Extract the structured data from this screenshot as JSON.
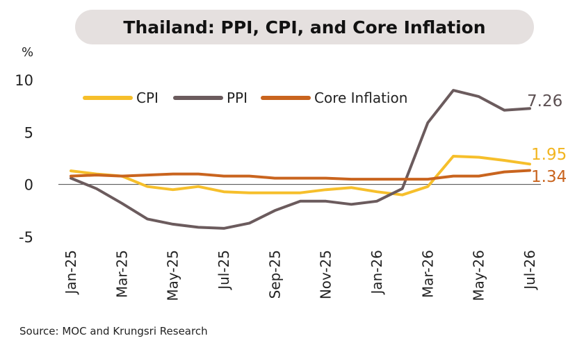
{
  "chart_data": {
    "type": "line",
    "title": "Thailand: PPI, CPI, and Core Inflation",
    "ylabel": "%",
    "ylim": [
      -5,
      10
    ],
    "yticks": [
      10,
      5,
      0,
      -5
    ],
    "x": [
      "Jan-25",
      "Feb-25",
      "Mar-25",
      "Apr-25",
      "May-25",
      "Jun-25",
      "Jul-25",
      "Aug-25",
      "Sep-25",
      "Oct-25",
      "Nov-25",
      "Dec-25",
      "Jan-26",
      "Feb-26",
      "Mar-26",
      "Apr-26",
      "May-26",
      "Jun-26",
      "Jul-26"
    ],
    "xtick_labels": [
      "Jan-25",
      "Mar-25",
      "May-25",
      "Jul-25",
      "Sep-25",
      "Nov-25",
      "Jan-26",
      "Mar-26",
      "May-26",
      "Jul-26"
    ],
    "legend_position": "top",
    "series": [
      {
        "name": "CPI",
        "color": "#f6bf2b",
        "values": [
          1.3,
          1.0,
          0.8,
          -0.2,
          -0.5,
          -0.2,
          -0.7,
          -0.8,
          -0.8,
          -0.8,
          -0.5,
          -0.3,
          -0.7,
          -1.0,
          -0.2,
          2.7,
          2.6,
          2.3,
          1.95
        ],
        "end_label": "1.95"
      },
      {
        "name": "PPI",
        "color": "#6b5b5d",
        "values": [
          0.6,
          -0.4,
          -1.8,
          -3.3,
          -3.8,
          -4.1,
          -4.2,
          -3.7,
          -2.5,
          -1.6,
          -1.6,
          -1.9,
          -1.6,
          -0.4,
          5.9,
          9.0,
          8.4,
          7.1,
          7.26
        ],
        "end_label": "7.26"
      },
      {
        "name": "Core Inflation",
        "color": "#c9641e",
        "values": [
          0.8,
          0.9,
          0.8,
          0.9,
          1.0,
          1.0,
          0.8,
          0.8,
          0.6,
          0.6,
          0.6,
          0.5,
          0.5,
          0.5,
          0.5,
          0.8,
          0.8,
          1.2,
          1.34
        ],
        "end_label": "1.34"
      }
    ]
  },
  "source": "Source: MOC and Krungsri Research"
}
